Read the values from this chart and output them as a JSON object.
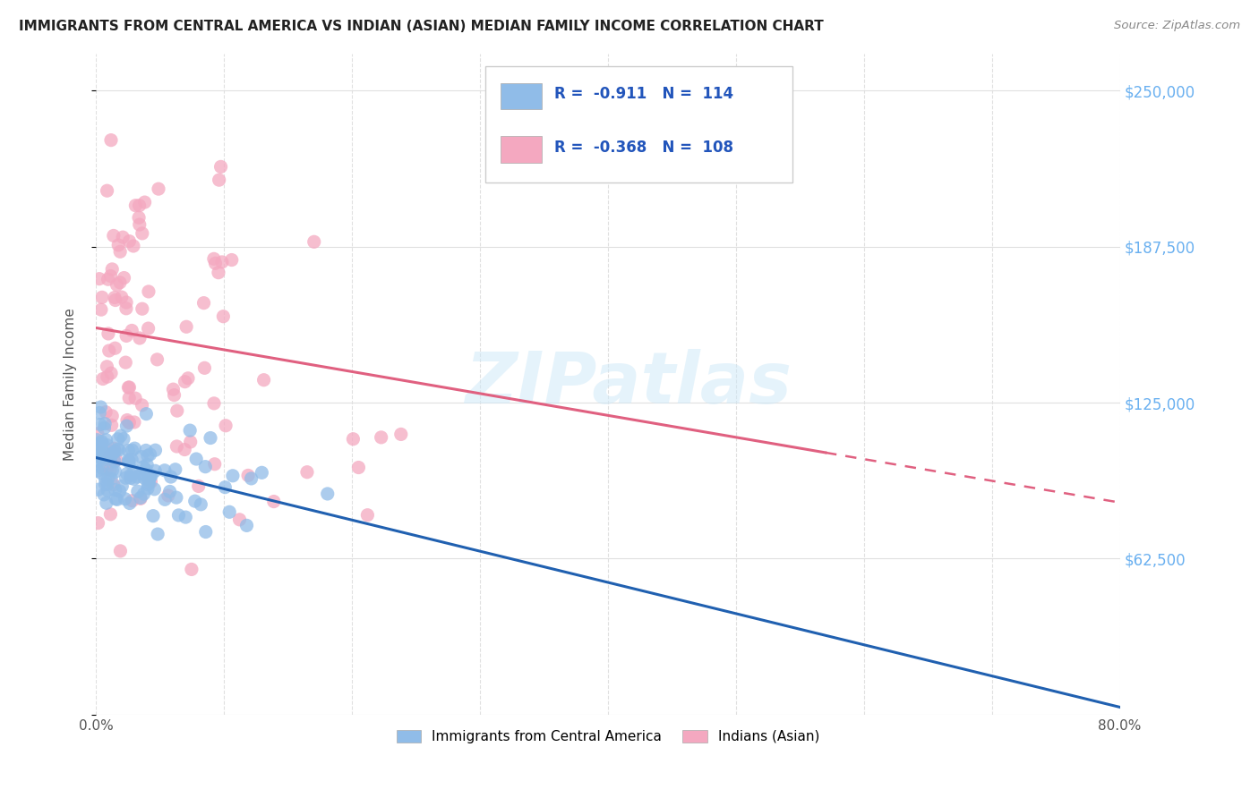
{
  "title": "IMMIGRANTS FROM CENTRAL AMERICA VS INDIAN (ASIAN) MEDIAN FAMILY INCOME CORRELATION CHART",
  "source": "Source: ZipAtlas.com",
  "ylabel": "Median Family Income",
  "xlim": [
    0.0,
    0.8
  ],
  "ylim": [
    0,
    265000
  ],
  "yticks": [
    0,
    62500,
    125000,
    187500,
    250000
  ],
  "ytick_labels": [
    "",
    "$62,500",
    "$125,000",
    "$187,500",
    "$250,000"
  ],
  "legend_label_blue": "Immigrants from Central America",
  "legend_label_pink": "Indians (Asian)",
  "watermark": "ZIPatlas",
  "blue_color": "#90bce8",
  "pink_color": "#f4a8c0",
  "trendline_blue": "#2060b0",
  "trendline_pink": "#e06080",
  "blue_trend_x0": 0.0,
  "blue_trend_y0": 103000,
  "blue_trend_x1": 0.8,
  "blue_trend_y1": 3000,
  "pink_trend_x0": 0.0,
  "pink_trend_y0": 155000,
  "pink_trend_x1_solid": 0.57,
  "pink_trend_y1_solid": 105000,
  "pink_trend_x1_dash": 0.8,
  "pink_trend_y1_dash": 85000,
  "blue_seed": 101,
  "pink_seed": 202,
  "n_blue": 114,
  "n_pink": 108,
  "legend_r_blue": "R =  -0.911",
  "legend_n_blue": "N =  114",
  "legend_r_pink": "R =  -0.368",
  "legend_n_pink": "N =  108",
  "bg_color": "#ffffff",
  "grid_color": "#e0e0e0",
  "axis_label_color": "#555555",
  "right_tick_color": "#6ab0f0",
  "title_color": "#222222",
  "source_color": "#888888"
}
